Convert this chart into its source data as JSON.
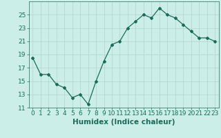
{
  "x": [
    0,
    1,
    2,
    3,
    4,
    5,
    6,
    7,
    8,
    9,
    10,
    11,
    12,
    13,
    14,
    15,
    16,
    17,
    18,
    19,
    20,
    21,
    22,
    23
  ],
  "y": [
    18.5,
    16.0,
    16.0,
    14.5,
    14.0,
    12.5,
    13.0,
    11.5,
    15.0,
    18.0,
    20.5,
    21.0,
    23.0,
    24.0,
    25.0,
    24.5,
    26.0,
    25.0,
    24.5,
    23.5,
    22.5,
    21.5,
    21.5,
    21.0
  ],
  "xlabel": "Humidex (Indice chaleur)",
  "xlim": [
    -0.5,
    23.5
  ],
  "ylim": [
    11,
    27
  ],
  "yticks": [
    11,
    13,
    15,
    17,
    19,
    21,
    23,
    25
  ],
  "xticks": [
    0,
    1,
    2,
    3,
    4,
    5,
    6,
    7,
    8,
    9,
    10,
    11,
    12,
    13,
    14,
    15,
    16,
    17,
    18,
    19,
    20,
    21,
    22,
    23
  ],
  "line_color": "#1a6b5a",
  "marker": "D",
  "marker_size": 2.0,
  "bg_color": "#cceee8",
  "grid_color": "#b0d4cc",
  "xlabel_fontsize": 7.5,
  "tick_fontsize": 6.5
}
